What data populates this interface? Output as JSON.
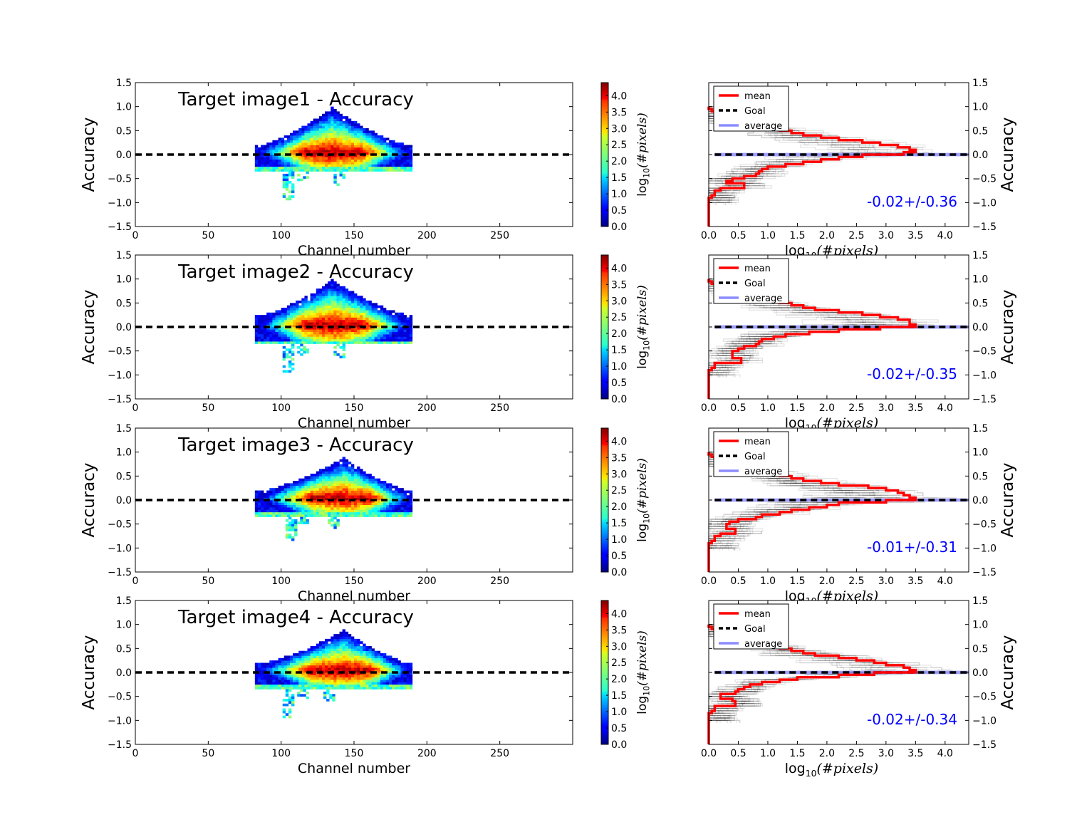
{
  "colors": {
    "mean": "#ff0000",
    "goal": "#000000",
    "average": "#8080ff",
    "stat_text": "#0000ff",
    "colormap": "jet"
  },
  "chart_data": [
    {
      "type": "heatmap",
      "title": "Target image1 - Accuracy",
      "xlabel": "Channel number",
      "ylabel": "Accuracy",
      "xlim": [
        0,
        300
      ],
      "ylim": [
        -1.5,
        1.5
      ],
      "xticks": [
        0,
        50,
        100,
        150,
        200,
        250
      ],
      "yticks": [
        -1.5,
        -1.0,
        -0.5,
        0.0,
        0.5,
        1.0,
        1.5
      ],
      "goal_line": 0.0,
      "colorbar": {
        "label": "log10(#pixels)",
        "range": [
          0,
          4.4
        ],
        "ticks": [
          0.0,
          0.5,
          1.0,
          1.5,
          2.0,
          2.5,
          3.0,
          3.5,
          4.0
        ]
      },
      "profile": {
        "x0": 82,
        "x1": 190,
        "peak_x": 134,
        "peak_top": 0.95,
        "upper_lo": 0.15,
        "lower": -0.25,
        "tails": [
          [
            104,
            -0.95
          ],
          [
            114,
            -0.5
          ],
          [
            139,
            -0.65
          ]
        ]
      }
    },
    {
      "type": "step-histogram",
      "xlabel": "log10(#pixels)",
      "ylabel": "Accuracy",
      "xlim": [
        0,
        4.4
      ],
      "ylim": [
        -1.5,
        1.5
      ],
      "xticks": [
        0.0,
        0.5,
        1.0,
        1.5,
        2.0,
        2.5,
        3.0,
        3.5,
        4.0
      ],
      "yticks": [
        -1.5,
        -1.0,
        -0.5,
        0.0,
        0.5,
        1.0,
        1.5
      ],
      "legend": [
        "mean",
        "Goal",
        "average"
      ],
      "legend_position": "top-left",
      "annotation": "-0.02+/-0.36",
      "series": [
        {
          "name": "mean",
          "y": [
            1.0,
            0.95,
            0.9,
            0.85,
            0.8,
            0.75,
            0.7,
            0.65,
            0.6,
            0.55,
            0.5,
            0.45,
            0.4,
            0.35,
            0.3,
            0.25,
            0.2,
            0.15,
            0.1,
            0.05,
            0.0,
            -0.05,
            -0.1,
            -0.15,
            -0.2,
            -0.25,
            -0.3,
            -0.35,
            -0.4,
            -0.45,
            -0.5,
            -0.55,
            -0.6,
            -0.65,
            -0.7,
            -0.75,
            -0.8,
            -0.85,
            -0.9,
            -0.95,
            -1.0
          ],
          "x": [
            0.0,
            0.05,
            0.1,
            0.1,
            0.2,
            0.3,
            0.5,
            0.7,
            1.0,
            1.2,
            1.4,
            1.6,
            1.9,
            2.2,
            2.6,
            2.9,
            3.2,
            3.4,
            3.5,
            3.3,
            2.6,
            2.2,
            1.9,
            1.6,
            1.3,
            1.0,
            0.9,
            0.85,
            0.8,
            0.6,
            0.4,
            0.3,
            0.6,
            0.6,
            0.2,
            0.1,
            0.1,
            0.05,
            0.0,
            0.0,
            0.0
          ]
        }
      ]
    },
    {
      "type": "heatmap",
      "title": "Target image2 - Accuracy",
      "xlabel": "Channel number",
      "ylabel": "Accuracy",
      "xlim": [
        0,
        300
      ],
      "ylim": [
        -1.5,
        1.5
      ],
      "xticks": [
        0,
        50,
        100,
        150,
        200,
        250
      ],
      "yticks": [
        -1.5,
        -1.0,
        -0.5,
        0.0,
        0.5,
        1.0,
        1.5
      ],
      "goal_line": 0.0,
      "colorbar": {
        "label": "log10(#pixels)",
        "range": [
          0,
          4.4
        ],
        "ticks": [
          0.0,
          0.5,
          1.0,
          1.5,
          2.0,
          2.5,
          3.0,
          3.5,
          4.0
        ]
      },
      "profile": {
        "x0": 82,
        "x1": 190,
        "peak_x": 134,
        "peak_top": 0.95,
        "upper_lo": 0.2,
        "lower": -0.3,
        "tails": [
          [
            104,
            -0.95
          ],
          [
            114,
            -0.55
          ],
          [
            139,
            -0.65
          ]
        ]
      }
    },
    {
      "type": "step-histogram",
      "xlabel": "log10(#pixels)",
      "ylabel": "Accuracy",
      "xlim": [
        0,
        4.4
      ],
      "ylim": [
        -1.5,
        1.5
      ],
      "xticks": [
        0.0,
        0.5,
        1.0,
        1.5,
        2.0,
        2.5,
        3.0,
        3.5,
        4.0
      ],
      "yticks": [
        -1.5,
        -1.0,
        -0.5,
        0.0,
        0.5,
        1.0,
        1.5
      ],
      "legend": [
        "mean",
        "Goal",
        "average"
      ],
      "legend_position": "top-left",
      "annotation": "-0.02+/-0.35",
      "series": [
        {
          "name": "mean",
          "y": [
            1.0,
            0.95,
            0.9,
            0.85,
            0.8,
            0.75,
            0.7,
            0.65,
            0.6,
            0.55,
            0.5,
            0.45,
            0.4,
            0.35,
            0.3,
            0.25,
            0.2,
            0.15,
            0.1,
            0.05,
            0.0,
            -0.05,
            -0.1,
            -0.15,
            -0.2,
            -0.25,
            -0.3,
            -0.35,
            -0.4,
            -0.45,
            -0.5,
            -0.55,
            -0.6,
            -0.65,
            -0.7,
            -0.75,
            -0.8,
            -0.85,
            -0.9,
            -0.95,
            -1.0
          ],
          "x": [
            0.0,
            0.05,
            0.1,
            0.1,
            0.2,
            0.3,
            0.5,
            0.7,
            1.0,
            1.2,
            1.4,
            1.6,
            1.8,
            2.2,
            2.6,
            2.9,
            3.2,
            3.4,
            3.4,
            3.5,
            2.9,
            2.2,
            1.7,
            1.3,
            1.1,
            0.9,
            0.85,
            0.8,
            0.6,
            0.5,
            0.4,
            0.4,
            0.4,
            0.55,
            0.55,
            0.1,
            0.1,
            0.05,
            0.0,
            0.0,
            0.0
          ]
        }
      ]
    },
    {
      "type": "heatmap",
      "title": "Target image3 - Accuracy",
      "xlabel": "Channel number",
      "ylabel": "Accuracy",
      "xlim": [
        0,
        300
      ],
      "ylim": [
        -1.5,
        1.5
      ],
      "xticks": [
        0,
        50,
        100,
        150,
        200,
        250
      ],
      "yticks": [
        -1.5,
        -1.0,
        -0.5,
        0.0,
        0.5,
        1.0,
        1.5
      ],
      "goal_line": 0.0,
      "colorbar": {
        "label": "log10(#pixels)",
        "range": [
          0,
          4.4
        ],
        "ticks": [
          0.0,
          0.5,
          1.0,
          1.5,
          2.0,
          2.5,
          3.0,
          3.5,
          4.0
        ]
      },
      "profile": {
        "x0": 82,
        "x1": 190,
        "peak_x": 142,
        "peak_top": 0.85,
        "upper_lo": 0.15,
        "lower": -0.25,
        "tails": [
          [
            106,
            -0.85
          ],
          [
            114,
            -0.45
          ],
          [
            135,
            -0.6
          ]
        ]
      }
    },
    {
      "type": "step-histogram",
      "xlabel": "log10(#pixels)",
      "ylabel": "Accuracy",
      "xlim": [
        0,
        4.4
      ],
      "ylim": [
        -1.5,
        1.5
      ],
      "xticks": [
        0.0,
        0.5,
        1.0,
        1.5,
        2.0,
        2.5,
        3.0,
        3.5,
        4.0
      ],
      "yticks": [
        -1.5,
        -1.0,
        -0.5,
        0.0,
        0.5,
        1.0,
        1.5
      ],
      "legend": [
        "mean",
        "Goal",
        "average"
      ],
      "legend_position": "top-left",
      "annotation": "-0.01+/-0.31",
      "series": [
        {
          "name": "mean",
          "y": [
            1.0,
            0.95,
            0.9,
            0.85,
            0.8,
            0.75,
            0.7,
            0.65,
            0.6,
            0.55,
            0.5,
            0.45,
            0.4,
            0.35,
            0.3,
            0.25,
            0.2,
            0.15,
            0.1,
            0.05,
            0.0,
            -0.05,
            -0.1,
            -0.15,
            -0.2,
            -0.25,
            -0.3,
            -0.35,
            -0.4,
            -0.45,
            -0.5,
            -0.55,
            -0.6,
            -0.65,
            -0.7,
            -0.75,
            -0.8,
            -0.85,
            -0.9,
            -0.95,
            -1.0
          ],
          "x": [
            0.0,
            0.05,
            0.1,
            0.1,
            0.2,
            0.3,
            0.5,
            0.7,
            1.0,
            1.2,
            1.4,
            1.6,
            1.9,
            2.2,
            2.7,
            3.0,
            3.2,
            3.3,
            3.4,
            3.5,
            3.0,
            2.2,
            2.0,
            1.7,
            1.4,
            1.2,
            0.9,
            0.8,
            0.5,
            0.35,
            0.3,
            0.3,
            0.45,
            0.45,
            0.2,
            0.1,
            0.1,
            0.05,
            0.0,
            0.0,
            0.0
          ]
        }
      ]
    },
    {
      "type": "heatmap",
      "title": "Target image4 - Accuracy",
      "xlabel": "Channel number",
      "ylabel": "Accuracy",
      "xlim": [
        0,
        300
      ],
      "ylim": [
        -1.5,
        1.5
      ],
      "xticks": [
        0,
        50,
        100,
        150,
        200,
        250
      ],
      "yticks": [
        -1.5,
        -1.0,
        -0.5,
        0.0,
        0.5,
        1.0,
        1.5
      ],
      "goal_line": 0.0,
      "colorbar": {
        "label": "log10(#pixels)",
        "range": [
          0,
          4.4
        ],
        "ticks": [
          0.0,
          0.5,
          1.0,
          1.5,
          2.0,
          2.5,
          3.0,
          3.5,
          4.0
        ]
      },
      "profile": {
        "x0": 82,
        "x1": 190,
        "peak_x": 142,
        "peak_top": 0.85,
        "upper_lo": 0.15,
        "lower": -0.25,
        "tails": [
          [
            104,
            -0.95
          ],
          [
            114,
            -0.5
          ],
          [
            132,
            -0.55
          ]
        ]
      }
    },
    {
      "type": "step-histogram",
      "xlabel": "log10(#pixels)",
      "ylabel": "Accuracy",
      "xlim": [
        0,
        4.4
      ],
      "ylim": [
        -1.5,
        1.5
      ],
      "xticks": [
        0.0,
        0.5,
        1.0,
        1.5,
        2.0,
        2.5,
        3.0,
        3.5,
        4.0
      ],
      "yticks": [
        -1.5,
        -1.0,
        -0.5,
        0.0,
        0.5,
        1.0,
        1.5
      ],
      "legend": [
        "mean",
        "Goal",
        "average"
      ],
      "legend_position": "top-left",
      "annotation": "-0.02+/-0.34",
      "series": [
        {
          "name": "mean",
          "y": [
            1.0,
            0.95,
            0.9,
            0.85,
            0.8,
            0.75,
            0.7,
            0.65,
            0.6,
            0.55,
            0.5,
            0.45,
            0.4,
            0.35,
            0.3,
            0.25,
            0.2,
            0.15,
            0.1,
            0.05,
            0.0,
            -0.05,
            -0.1,
            -0.15,
            -0.2,
            -0.25,
            -0.3,
            -0.35,
            -0.4,
            -0.45,
            -0.5,
            -0.55,
            -0.6,
            -0.65,
            -0.7,
            -0.75,
            -0.8,
            -0.85,
            -0.9,
            -0.95,
            -1.0
          ],
          "x": [
            0.0,
            0.05,
            0.1,
            0.1,
            0.2,
            0.3,
            0.5,
            0.7,
            1.0,
            1.2,
            1.4,
            1.6,
            1.8,
            2.2,
            2.5,
            2.8,
            3.0,
            3.3,
            3.4,
            3.5,
            2.8,
            2.2,
            1.5,
            1.2,
            0.9,
            0.7,
            0.6,
            0.5,
            0.45,
            0.2,
            0.2,
            0.4,
            0.45,
            0.45,
            0.1,
            0.1,
            0.05,
            0.0,
            0.0,
            0.0,
            0.0
          ]
        }
      ]
    }
  ]
}
